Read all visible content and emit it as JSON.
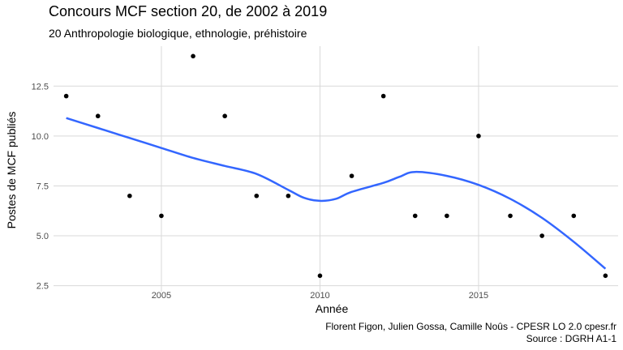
{
  "title": "Concours MCF section 20, de 2002 à 2019",
  "subtitle": "20 Anthropologie biologique, ethnologie, préhistoire",
  "caption": {
    "line1": "Florent Figon, Julien Gossa, Camille Noûs - CPESR LO 2.0 cpesr.fr",
    "line2": "Source : DGRH A1-1"
  },
  "chart_data": {
    "type": "scatter",
    "title": "Concours MCF section 20, de 2002 à 2019",
    "subtitle": "20 Anthropologie biologique, ethnologie, préhistoire",
    "xlabel": "Année",
    "ylabel": "Postes de MCF publiés",
    "xlim": [
      2001.6,
      2019.4
    ],
    "ylim": [
      2.2,
      14.5
    ],
    "x_ticks": [
      2005,
      2010,
      2015
    ],
    "y_ticks": [
      2.5,
      5.0,
      7.5,
      10.0,
      12.5
    ],
    "x_tick_labels": [
      "2005",
      "2010",
      "2015"
    ],
    "y_tick_labels": [
      "2.5",
      "5.0",
      "7.5",
      "10.0",
      "12.5"
    ],
    "grid": true,
    "points": [
      {
        "x": 2002,
        "y": 12
      },
      {
        "x": 2003,
        "y": 11
      },
      {
        "x": 2004,
        "y": 7
      },
      {
        "x": 2005,
        "y": 6
      },
      {
        "x": 2006,
        "y": 14
      },
      {
        "x": 2007,
        "y": 11
      },
      {
        "x": 2008,
        "y": 7
      },
      {
        "x": 2009,
        "y": 7
      },
      {
        "x": 2010,
        "y": 3
      },
      {
        "x": 2011,
        "y": 8
      },
      {
        "x": 2012,
        "y": 12
      },
      {
        "x": 2013,
        "y": 6
      },
      {
        "x": 2014,
        "y": 6
      },
      {
        "x": 2015,
        "y": 10
      },
      {
        "x": 2016,
        "y": 6
      },
      {
        "x": 2017,
        "y": 5
      },
      {
        "x": 2018,
        "y": 6
      },
      {
        "x": 2019,
        "y": 3
      }
    ],
    "trend": {
      "type": "loess",
      "color": "#3366ff",
      "x": [
        2002,
        2003,
        2004,
        2005,
        2006,
        2007,
        2008,
        2009,
        2009.5,
        2010,
        2010.5,
        2011,
        2012,
        2012.5,
        2013,
        2014,
        2015,
        2016,
        2017,
        2018,
        2019
      ],
      "y": [
        10.9,
        10.4,
        9.9,
        9.4,
        8.9,
        8.5,
        8.1,
        7.3,
        6.9,
        6.75,
        6.85,
        7.2,
        7.65,
        7.95,
        8.2,
        8.0,
        7.55,
        6.85,
        5.9,
        4.7,
        3.35
      ]
    },
    "point_color": "#000000",
    "grid_color": "#d9d9d9"
  }
}
